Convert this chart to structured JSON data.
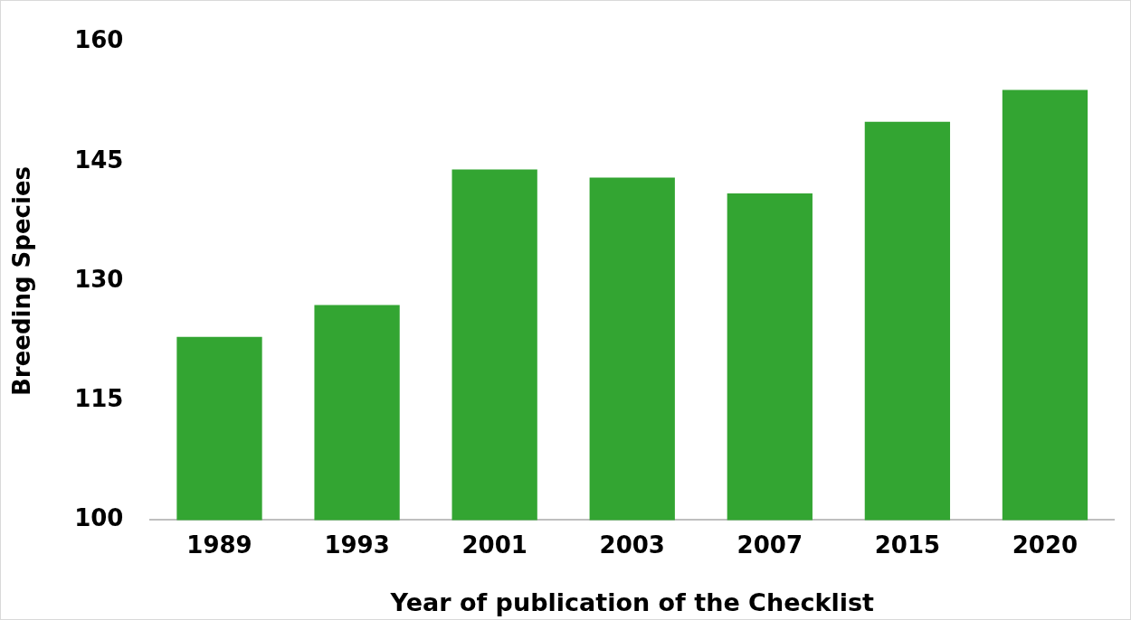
{
  "chart_data": {
    "type": "bar",
    "xlabel": "Year of publication of the Checklist",
    "ylabel": "Breeding Species",
    "categories": [
      "1989",
      "1993",
      "2001",
      "2003",
      "2007",
      "2015",
      "2020"
    ],
    "values": [
      123,
      127,
      144,
      143,
      141,
      150,
      154
    ],
    "color": "#33a532",
    "ylim": [
      100,
      160
    ],
    "yticks": [
      100,
      115,
      130,
      145,
      160
    ],
    "grid": false,
    "legend": false
  }
}
